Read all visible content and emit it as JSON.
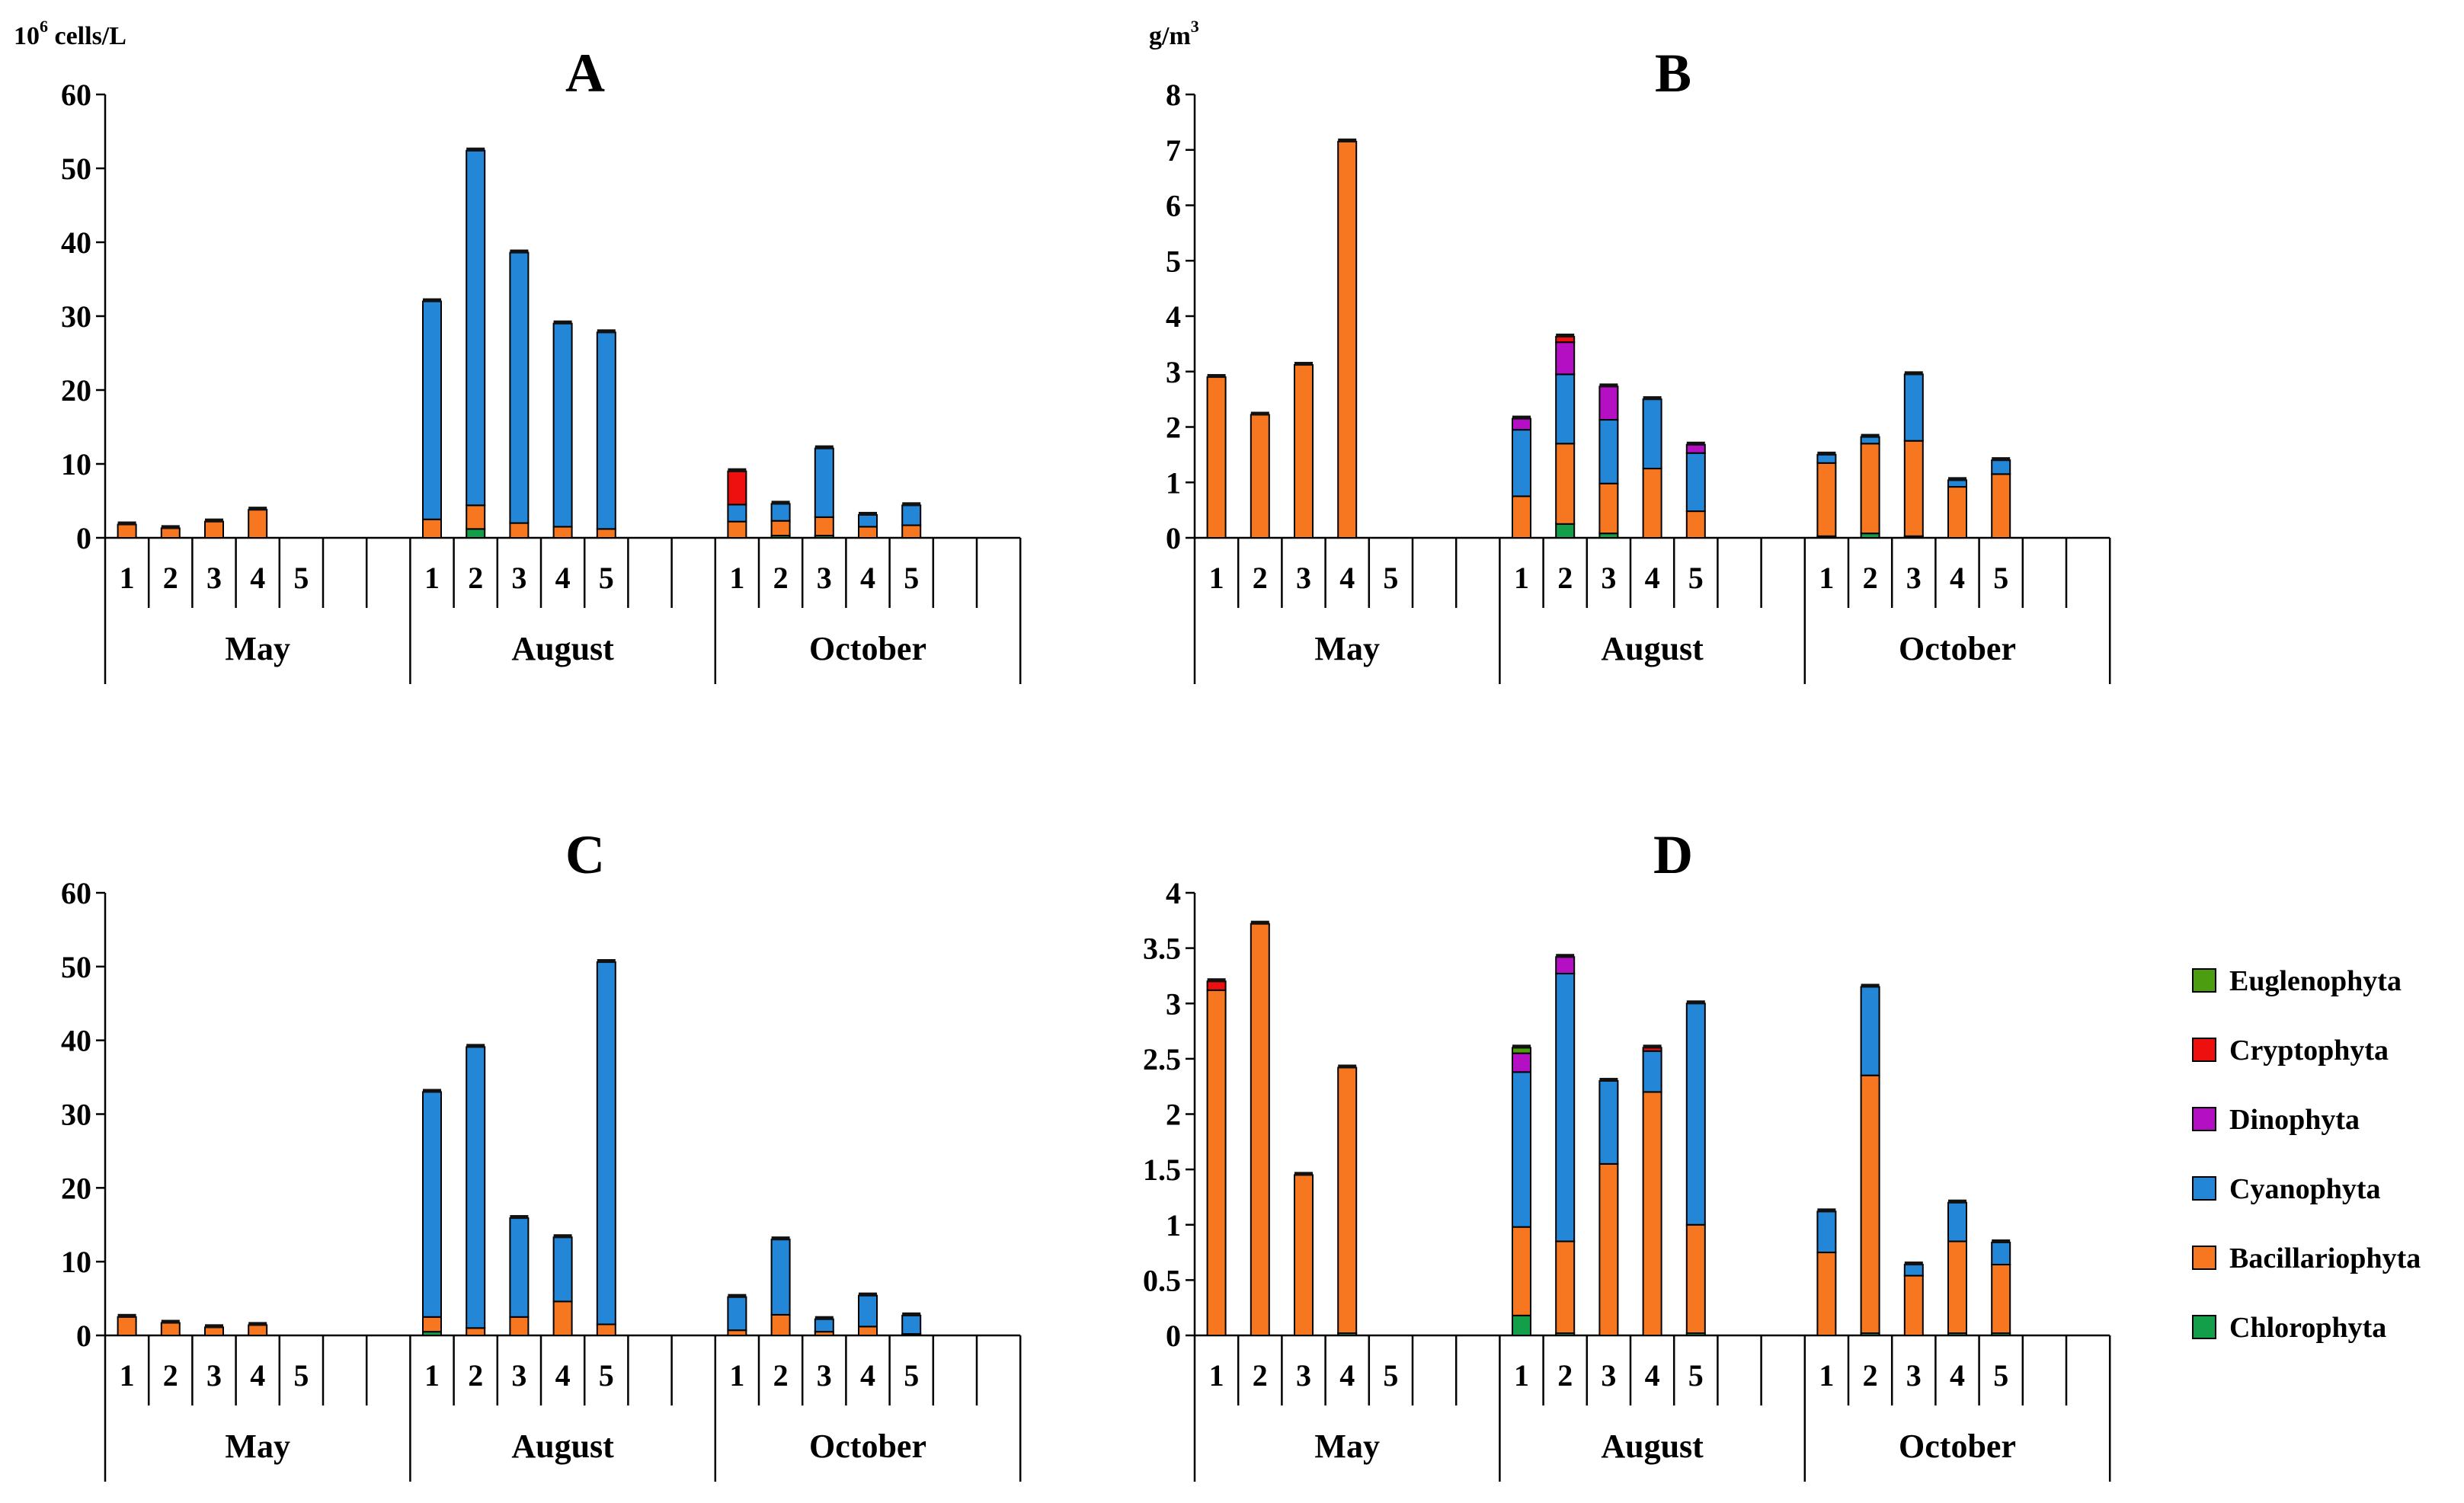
{
  "colors": {
    "Euglenophyta": "#4c9e10",
    "Cryptophyta": "#ee0f0f",
    "Dinophyta": "#b50fc4",
    "Cyanophyta": "#2386d6",
    "Bacillariophyta": "#f77720",
    "Chlorophyta": "#139e4a",
    "cap": "#111111"
  },
  "legend": {
    "items": [
      "Euglenophyta",
      "Cryptophyta",
      "Dinophyta",
      "Cyanophyta",
      "Bacillariophyta",
      "Chlorophyta"
    ]
  },
  "chart_data": [
    {
      "id": "A",
      "type": "bar",
      "stacked": true,
      "title": "A",
      "unit_base": "10",
      "unit_exp": "6",
      "unit_tail": " cells/L",
      "ylim": [
        0,
        60
      ],
      "yticks": [
        "0",
        "10",
        "20",
        "30",
        "40",
        "50",
        "60"
      ],
      "groups": [
        "May",
        "August",
        "October"
      ],
      "categories": [
        "1",
        "2",
        "3",
        "4",
        "5"
      ],
      "series_order": [
        "Chlorophyta",
        "Bacillariophyta",
        "Cyanophyta",
        "Dinophyta",
        "Cryptophyta",
        "Euglenophyta"
      ],
      "values": [
        [
          {
            "Bacillariophyta": 1.8
          },
          {
            "Bacillariophyta": 1.3
          },
          {
            "Bacillariophyta": 2.2
          },
          {
            "Bacillariophyta": 3.8
          },
          {}
        ],
        [
          {
            "Bacillariophyta": 2.5,
            "Cyanophyta": 29.5
          },
          {
            "Chlorophyta": 1.2,
            "Bacillariophyta": 3.2,
            "Cyanophyta": 48.0
          },
          {
            "Bacillariophyta": 2.0,
            "Cyanophyta": 36.6
          },
          {
            "Bacillariophyta": 1.5,
            "Cyanophyta": 27.5
          },
          {
            "Bacillariophyta": 1.2,
            "Cyanophyta": 26.6
          }
        ],
        [
          {
            "Bacillariophyta": 2.2,
            "Cyanophyta": 2.3,
            "Cryptophyta": 4.5
          },
          {
            "Chlorophyta": 0.3,
            "Bacillariophyta": 2.0,
            "Cyanophyta": 2.3
          },
          {
            "Chlorophyta": 0.3,
            "Bacillariophyta": 2.5,
            "Cyanophyta": 9.3
          },
          {
            "Bacillariophyta": 1.5,
            "Cyanophyta": 1.6
          },
          {
            "Bacillariophyta": 1.7,
            "Cyanophyta": 2.7
          }
        ]
      ]
    },
    {
      "id": "B",
      "type": "bar",
      "stacked": true,
      "title": "B",
      "unit_base": "g/m",
      "unit_exp": "3",
      "unit_tail": "",
      "ylim": [
        0,
        8
      ],
      "yticks": [
        "0",
        "1",
        "2",
        "3",
        "4",
        "5",
        "6",
        "7",
        "8"
      ],
      "groups": [
        "May",
        "August",
        "October"
      ],
      "categories": [
        "1",
        "2",
        "3",
        "4",
        "5"
      ],
      "series_order": [
        "Chlorophyta",
        "Bacillariophyta",
        "Cyanophyta",
        "Dinophyta",
        "Cryptophyta",
        "Euglenophyta"
      ],
      "values": [
        [
          {
            "Bacillariophyta": 2.9
          },
          {
            "Bacillariophyta": 2.22
          },
          {
            "Bacillariophyta": 3.12
          },
          {
            "Bacillariophyta": 7.15
          },
          {}
        ],
        [
          {
            "Bacillariophyta": 0.75,
            "Cyanophyta": 1.2,
            "Dinophyta": 0.2
          },
          {
            "Chlorophyta": 0.25,
            "Bacillariophyta": 1.45,
            "Cyanophyta": 1.25,
            "Dinophyta": 0.58,
            "Cryptophyta": 0.1
          },
          {
            "Chlorophyta": 0.08,
            "Bacillariophyta": 0.9,
            "Cyanophyta": 1.15,
            "Dinophyta": 0.6
          },
          {
            "Bacillariophyta": 1.25,
            "Cyanophyta": 1.25
          },
          {
            "Bacillariophyta": 0.48,
            "Cyanophyta": 1.05,
            "Dinophyta": 0.15
          }
        ],
        [
          {
            "Chlorophyta": 0.03,
            "Bacillariophyta": 1.32,
            "Cyanophyta": 0.15
          },
          {
            "Chlorophyta": 0.08,
            "Bacillariophyta": 1.62,
            "Cyanophyta": 0.12
          },
          {
            "Chlorophyta": 0.03,
            "Bacillariophyta": 1.72,
            "Cyanophyta": 1.2
          },
          {
            "Bacillariophyta": 0.92,
            "Cyanophyta": 0.12
          },
          {
            "Bacillariophyta": 1.15,
            "Cyanophyta": 0.25
          }
        ]
      ]
    },
    {
      "id": "C",
      "type": "bar",
      "stacked": true,
      "title": "C",
      "unit_base": "",
      "unit_exp": "",
      "unit_tail": "",
      "ylim": [
        0,
        60
      ],
      "yticks": [
        "0",
        "10",
        "20",
        "30",
        "40",
        "50",
        "60"
      ],
      "groups": [
        "May",
        "August",
        "October"
      ],
      "categories": [
        "1",
        "2",
        "3",
        "4",
        "5"
      ],
      "series_order": [
        "Chlorophyta",
        "Bacillariophyta",
        "Cyanophyta",
        "Dinophyta",
        "Cryptophyta",
        "Euglenophyta"
      ],
      "values": [
        [
          {
            "Bacillariophyta": 2.5
          },
          {
            "Bacillariophyta": 1.7
          },
          {
            "Bacillariophyta": 1.1
          },
          {
            "Bacillariophyta": 1.4
          },
          {}
        ],
        [
          {
            "Chlorophyta": 0.5,
            "Bacillariophyta": 2.0,
            "Cyanophyta": 30.5
          },
          {
            "Bacillariophyta": 1.0,
            "Cyanophyta": 38.1
          },
          {
            "Bacillariophyta": 2.5,
            "Cyanophyta": 13.4
          },
          {
            "Bacillariophyta": 4.6,
            "Cyanophyta": 8.7
          },
          {
            "Bacillariophyta": 1.5,
            "Cyanophyta": 49.1
          }
        ],
        [
          {
            "Bacillariophyta": 0.7,
            "Cyanophyta": 4.5
          },
          {
            "Bacillariophyta": 2.8,
            "Cyanophyta": 10.2
          },
          {
            "Bacillariophyta": 0.5,
            "Cyanophyta": 1.7
          },
          {
            "Bacillariophyta": 1.2,
            "Cyanophyta": 4.2
          },
          {
            "Bacillariophyta": 0.2,
            "Cyanophyta": 2.5
          }
        ]
      ]
    },
    {
      "id": "D",
      "type": "bar",
      "stacked": true,
      "title": "D",
      "unit_base": "",
      "unit_exp": "",
      "unit_tail": "",
      "ylim": [
        0,
        4
      ],
      "yticks": [
        "0",
        "0.5",
        "1",
        "1.5",
        "2",
        "2.5",
        "3",
        "3.5",
        "4"
      ],
      "groups": [
        "May",
        "August",
        "October"
      ],
      "categories": [
        "1",
        "2",
        "3",
        "4",
        "5"
      ],
      "series_order": [
        "Chlorophyta",
        "Bacillariophyta",
        "Cyanophyta",
        "Dinophyta",
        "Cryptophyta",
        "Euglenophyta"
      ],
      "values": [
        [
          {
            "Bacillariophyta": 3.12,
            "Cryptophyta": 0.08
          },
          {
            "Bacillariophyta": 3.72
          },
          {
            "Bacillariophyta": 1.45
          },
          {
            "Chlorophyta": 0.02,
            "Bacillariophyta": 2.4
          },
          {}
        ],
        [
          {
            "Chlorophyta": 0.18,
            "Bacillariophyta": 0.8,
            "Cyanophyta": 1.4,
            "Dinophyta": 0.17,
            "Euglenophyta": 0.05
          },
          {
            "Chlorophyta": 0.02,
            "Bacillariophyta": 0.83,
            "Cyanophyta": 2.42,
            "Dinophyta": 0.15
          },
          {
            "Bacillariophyta": 1.55,
            "Cyanophyta": 0.75
          },
          {
            "Bacillariophyta": 2.2,
            "Cyanophyta": 0.37,
            "Cryptophyta": 0.03
          },
          {
            "Chlorophyta": 0.02,
            "Bacillariophyta": 0.98,
            "Cyanophyta": 2.0
          }
        ],
        [
          {
            "Bacillariophyta": 0.75,
            "Cyanophyta": 0.37
          },
          {
            "Chlorophyta": 0.02,
            "Bacillariophyta": 2.33,
            "Cyanophyta": 0.8
          },
          {
            "Bacillariophyta": 0.54,
            "Cyanophyta": 0.1
          },
          {
            "Chlorophyta": 0.02,
            "Bacillariophyta": 0.83,
            "Cyanophyta": 0.35
          },
          {
            "Chlorophyta": 0.02,
            "Bacillariophyta": 0.62,
            "Cyanophyta": 0.2
          }
        ]
      ]
    }
  ]
}
